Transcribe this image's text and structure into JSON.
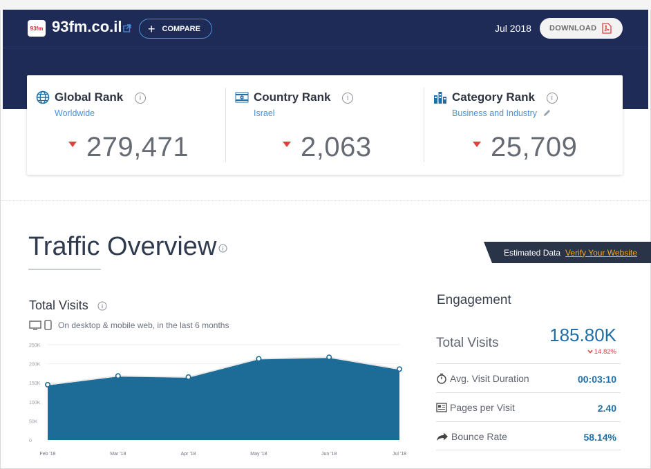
{
  "header": {
    "site_name": "93fm.co.il",
    "favicon_text": "93fm",
    "compare_label": "COMPARE",
    "month": "Jul 2018",
    "download_label": "DOWNLOAD"
  },
  "ranks": [
    {
      "title": "Global Rank",
      "sub": "Worldwide",
      "value": "279,471",
      "icon": "globe-icon"
    },
    {
      "title": "Country Rank",
      "sub": "Israel",
      "value": "2,063",
      "icon": "israel-flag-icon"
    },
    {
      "title": "Category Rank",
      "sub": "Business and Industry",
      "value": "25,709",
      "icon": "category-chart-icon"
    }
  ],
  "traffic": {
    "title": "Traffic Overview",
    "estimated_label": "Estimated Data",
    "verify_label": "Verify Your Website",
    "total_visits_title": "Total Visits",
    "device_note": "On desktop & mobile web, in the last 6 months"
  },
  "chart_data": {
    "type": "area",
    "x": [
      "Feb '18",
      "Mar '18",
      "Apr '18",
      "May '18",
      "Jun '18",
      "Jul '18"
    ],
    "y_ticks": [
      "250K",
      "200K",
      "150K",
      "100K",
      "50K",
      "0"
    ],
    "series": [
      {
        "values": [
          145000,
          168000,
          165000,
          213000,
          217000,
          186000
        ]
      }
    ],
    "ylim": [
      0,
      250000
    ],
    "grid": true,
    "colors": {
      "fill": "#1d6c97",
      "line": "#e8e8e8",
      "point": "#1d6c97"
    }
  },
  "engagement": {
    "title": "Engagement",
    "total_visits_label": "Total Visits",
    "total_visits_value": "185.80K",
    "total_visits_change": "14.82%",
    "rows": [
      {
        "label": "Avg. Visit Duration",
        "value": "00:03:10",
        "icon": "stopwatch-icon"
      },
      {
        "label": "Pages per Visit",
        "value": "2.40",
        "icon": "pages-icon"
      },
      {
        "label": "Bounce Rate",
        "value": "58.14%",
        "icon": "bounce-arrow-icon"
      }
    ]
  }
}
